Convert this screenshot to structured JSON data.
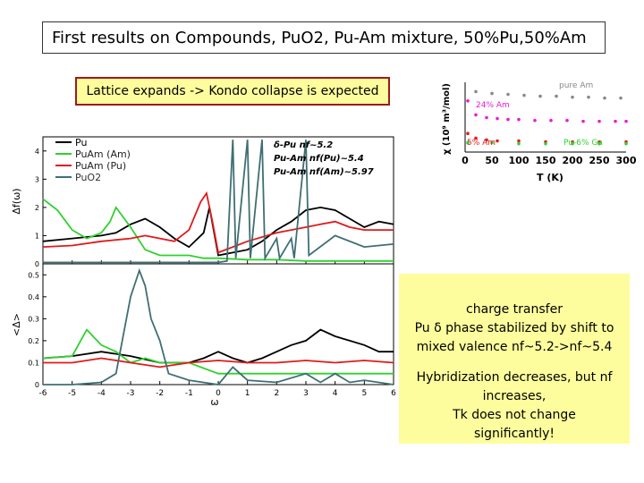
{
  "title": "First results on Compounds, PuO2, Pu-Am mixture, 50%Pu,50%Am",
  "subtitle": "Lattice expands -> Kondo collapse is expected",
  "note_charge": [
    "charge transfer",
    "Pu δ phase stabilized by shift to",
    "mixed valence nf~5.2->nf~5.4"
  ],
  "note_hybrid": [
    "Hybridization decreases, but nf",
    "increases,",
    "Tk does not change",
    "significantly!"
  ],
  "chart_data": [
    {
      "type": "line",
      "title": "",
      "ylabel": "Δf(ω)",
      "xlim": [
        -6,
        6
      ],
      "ylim": [
        0,
        4.5
      ],
      "yticks": [
        "0",
        "1",
        "2",
        "3",
        "4"
      ],
      "legend": [
        "Pu",
        "PuAm (Am)",
        "PuAm (Pu)",
        "PuO2"
      ],
      "annotations": [
        "δ-Pu nf~5.2",
        "Pu-Am nf(Pu)~5.4",
        "Pu-Am nf(Am)~5.97"
      ],
      "colors": {
        "Pu": "#000000",
        "PuAm (Am)": "#2fd12f",
        "PuAm (Pu)": "#e01a1a",
        "PuO2": "#3f6f73"
      },
      "series": [
        {
          "name": "Pu",
          "x": [
            -6,
            -5,
            -4,
            -3.5,
            -3,
            -2.5,
            -2,
            -1.5,
            -1,
            -0.5,
            -0.3,
            0,
            0.5,
            1,
            1.5,
            2,
            2.5,
            3,
            3.5,
            4,
            4.5,
            5,
            5.5,
            6
          ],
          "y": [
            0.8,
            0.9,
            1.0,
            1.1,
            1.4,
            1.6,
            1.3,
            0.9,
            0.6,
            1.1,
            2.0,
            0.3,
            0.4,
            0.5,
            0.8,
            1.2,
            1.5,
            1.9,
            2.0,
            1.9,
            1.6,
            1.3,
            1.5,
            1.4
          ]
        },
        {
          "name": "PuAm (Am)",
          "x": [
            -6,
            -5.5,
            -5,
            -4.5,
            -4,
            -3.7,
            -3.5,
            -3,
            -2.5,
            -2,
            -1,
            -0.5,
            0,
            1,
            2,
            3,
            4,
            5,
            6
          ],
          "y": [
            2.3,
            1.9,
            1.2,
            0.9,
            1.1,
            1.5,
            2.0,
            1.3,
            0.5,
            0.3,
            0.3,
            0.2,
            0.2,
            0.15,
            0.15,
            0.1,
            0.1,
            0.1,
            0.1
          ]
        },
        {
          "name": "PuAm (Pu)",
          "x": [
            -6,
            -5,
            -4,
            -3,
            -2.5,
            -2,
            -1.5,
            -1,
            -0.6,
            -0.4,
            -0.2,
            0,
            0.5,
            1,
            2,
            3,
            3.5,
            4,
            4.5,
            5,
            5.5,
            6
          ],
          "y": [
            0.6,
            0.65,
            0.8,
            0.9,
            1.0,
            0.9,
            0.8,
            1.2,
            2.2,
            2.5,
            1.5,
            0.4,
            0.6,
            0.8,
            1.1,
            1.3,
            1.4,
            1.5,
            1.3,
            1.2,
            1.2,
            1.2
          ]
        },
        {
          "name": "PuO2",
          "x": [
            -6,
            -4,
            -3,
            -2,
            -1,
            0,
            0.3,
            0.5,
            0.6,
            1,
            1.1,
            1.5,
            1.6,
            2,
            2.1,
            2.5,
            2.6,
            3,
            3.1,
            4,
            5,
            6
          ],
          "y": [
            0.05,
            0.05,
            0.05,
            0.05,
            0.05,
            0.05,
            0.1,
            4.4,
            0.2,
            4.4,
            0.2,
            4.4,
            0.2,
            0.9,
            0.2,
            0.9,
            0.2,
            4.4,
            0.3,
            1.0,
            0.6,
            0.7
          ]
        }
      ]
    },
    {
      "type": "line",
      "title": "",
      "xlabel": "ω",
      "ylabel": "<Δ>",
      "xlim": [
        -6,
        6
      ],
      "ylim": [
        0,
        0.55
      ],
      "xticks": [
        "-6",
        "-5",
        "-4",
        "-3",
        "-2",
        "-1",
        "0",
        "1",
        "2",
        "3",
        "4",
        "5",
        "6"
      ],
      "yticks": [
        "0",
        "0.1",
        "0.2",
        "0.3",
        "0.4",
        "0.5"
      ],
      "series": [
        {
          "name": "Pu",
          "x": [
            -6,
            -5,
            -4,
            -3,
            -2,
            -1,
            -0.5,
            0,
            0.5,
            1,
            1.5,
            2,
            2.5,
            3,
            3.5,
            4,
            4.5,
            5,
            5.5,
            6
          ],
          "y": [
            0.12,
            0.13,
            0.15,
            0.13,
            0.1,
            0.1,
            0.12,
            0.15,
            0.12,
            0.1,
            0.12,
            0.15,
            0.18,
            0.2,
            0.25,
            0.22,
            0.2,
            0.18,
            0.15,
            0.15
          ]
        },
        {
          "name": "PuAm (Am)",
          "x": [
            -6,
            -5,
            -4.5,
            -4,
            -3.5,
            -3,
            -2.5,
            -2,
            -1,
            0,
            1,
            2,
            3,
            4,
            5,
            6
          ],
          "y": [
            0.12,
            0.13,
            0.25,
            0.18,
            0.15,
            0.1,
            0.12,
            0.1,
            0.1,
            0.05,
            0.05,
            0.05,
            0.05,
            0.05,
            0.05,
            0.05
          ]
        },
        {
          "name": "PuAm (Pu)",
          "x": [
            -6,
            -5,
            -4,
            -3,
            -2,
            -1,
            0,
            1,
            2,
            3,
            4,
            5,
            6
          ],
          "y": [
            0.1,
            0.1,
            0.12,
            0.1,
            0.08,
            0.1,
            0.11,
            0.1,
            0.1,
            0.11,
            0.1,
            0.11,
            0.1
          ]
        },
        {
          "name": "PuO2",
          "x": [
            -6,
            -5,
            -4,
            -3.5,
            -3,
            -2.7,
            -2.5,
            -2.3,
            -2,
            -1.7,
            -1,
            0,
            0.5,
            1,
            2,
            3,
            3.5,
            4,
            4.5,
            5,
            6
          ],
          "y": [
            0,
            0,
            0.01,
            0.05,
            0.4,
            0.52,
            0.45,
            0.3,
            0.2,
            0.05,
            0.02,
            0,
            0.08,
            0.02,
            0.01,
            0.05,
            0.01,
            0.05,
            0.01,
            0.02,
            0
          ]
        }
      ]
    },
    {
      "type": "scatter",
      "title": "",
      "xlabel": "T (K)",
      "ylabel": "χ (10⁹ m³/mol)",
      "xlim": [
        0,
        300
      ],
      "xticks": [
        "0",
        "50",
        "100",
        "150",
        "200",
        "250",
        "300"
      ],
      "annotations": [
        "pure Am",
        "24% Am",
        "5% Am",
        "Pu-6% Ga"
      ],
      "colors": {
        "pure Am": "#888888",
        "24% Am": "#e81ad6",
        "5% Am": "#e81a1a",
        "Pu-6% Ga": "#2fd12f"
      },
      "series": [
        {
          "name": "pure Am",
          "x": [
            20,
            50,
            80,
            110,
            140,
            170,
            200,
            230,
            260,
            290
          ],
          "y": [
            1.0,
            0.98,
            0.97,
            0.96,
            0.95,
            0.95,
            0.94,
            0.94,
            0.93,
            0.93
          ]
        },
        {
          "name": "24% Am",
          "x": [
            5,
            20,
            40,
            60,
            80,
            100,
            130,
            160,
            190,
            220,
            250,
            280,
            300
          ],
          "y": [
            0.9,
            0.75,
            0.72,
            0.71,
            0.7,
            0.7,
            0.69,
            0.69,
            0.69,
            0.68,
            0.68,
            0.68,
            0.68
          ]
        },
        {
          "name": "5% Am",
          "x": [
            5,
            20,
            40,
            60,
            100,
            150,
            200,
            250,
            300
          ],
          "y": [
            0.55,
            0.5,
            0.48,
            0.47,
            0.47,
            0.46,
            0.46,
            0.46,
            0.46
          ]
        },
        {
          "name": "Pu-6% Ga",
          "x": [
            5,
            50,
            100,
            150,
            200,
            250,
            300
          ],
          "y": [
            0.45,
            0.45,
            0.44,
            0.44,
            0.44,
            0.44,
            0.44
          ]
        }
      ]
    }
  ]
}
